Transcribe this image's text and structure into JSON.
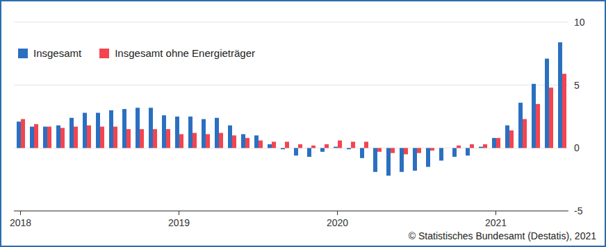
{
  "chart_data": {
    "type": "bar",
    "source": "© Statistisches Bundesamt (Destatis), 2021",
    "categories": [
      "2018",
      null,
      null,
      null,
      null,
      null,
      null,
      null,
      null,
      null,
      null,
      null,
      "2019",
      null,
      null,
      null,
      null,
      null,
      null,
      null,
      null,
      null,
      null,
      null,
      "2020",
      null,
      null,
      null,
      null,
      null,
      null,
      null,
      null,
      null,
      null,
      null,
      "2021",
      null,
      null,
      null,
      null,
      null
    ],
    "series": [
      {
        "name": "Insgesamt",
        "color": "#2b70c0",
        "values": [
          2.1,
          1.7,
          1.7,
          1.8,
          2.4,
          2.8,
          2.8,
          3.0,
          3.1,
          3.2,
          3.2,
          2.6,
          2.5,
          2.5,
          2.3,
          2.4,
          1.8,
          1.1,
          1.0,
          0.3,
          -0.1,
          -0.6,
          -0.7,
          -0.3,
          0.1,
          -0.1,
          -0.8,
          -1.9,
          -2.2,
          -1.9,
          -1.8,
          -1.5,
          -1.0,
          -0.7,
          -0.6,
          0.1,
          0.8,
          1.8,
          3.6,
          5.1,
          7.1,
          8.4
        ]
      },
      {
        "name": "Insgesamt ohne Energieträger",
        "color": "#f2454f",
        "values": [
          2.3,
          1.9,
          1.7,
          1.6,
          1.7,
          1.8,
          1.7,
          1.7,
          1.5,
          1.5,
          1.5,
          1.5,
          1.1,
          1.2,
          1.1,
          1.2,
          1.0,
          0.8,
          0.6,
          0.5,
          0.5,
          0.3,
          0.2,
          0.3,
          0.6,
          0.5,
          0.5,
          -0.3,
          -0.4,
          -0.5,
          -0.4,
          -0.2,
          0.0,
          0.2,
          0.3,
          0.3,
          0.8,
          1.4,
          2.3,
          3.5,
          4.8,
          5.9
        ]
      }
    ],
    "ylim": [
      -5,
      10
    ],
    "yticks": [
      -5,
      0,
      5,
      10
    ],
    "grid": true,
    "legend": "upper left"
  }
}
